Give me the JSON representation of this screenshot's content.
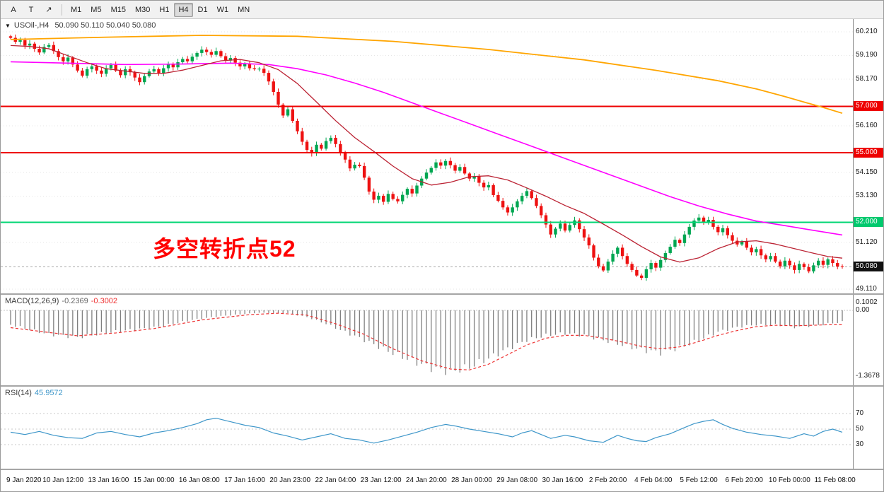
{
  "toolbar": {
    "tool_buttons": [
      {
        "name": "font-tool-button",
        "glyph": "A"
      },
      {
        "name": "text-tool-button",
        "glyph": "T"
      },
      {
        "name": "cursor-tool-button",
        "glyph": "↗"
      }
    ],
    "timeframes": [
      "M1",
      "M5",
      "M15",
      "M30",
      "H1",
      "H4",
      "D1",
      "W1",
      "MN"
    ],
    "active_timeframe": "H4"
  },
  "chart": {
    "collapse_glyph": "▼",
    "title": "USOil-,H4",
    "ohlc_readout": "50.090 50.110 50.040 50.080",
    "annotation": {
      "text": "多空转折点52",
      "color": "#ff0000"
    },
    "colors": {
      "up": "#00a651",
      "down": "#ee1111",
      "ma_fast": "#bb2233",
      "ma_mid": "#ff00ff",
      "ma_slow": "#ffa500",
      "bid": "#aaaaaa"
    },
    "axis_labels": [
      {
        "price": 60.21,
        "label": "60.210"
      },
      {
        "price": 59.19,
        "label": "59.190"
      },
      {
        "price": 58.17,
        "label": "58.170"
      },
      {
        "price": 56.16,
        "label": "56.160"
      },
      {
        "price": 54.15,
        "label": "54.150"
      },
      {
        "price": 53.13,
        "label": "53.130"
      },
      {
        "price": 51.12,
        "label": "51.120"
      },
      {
        "price": 49.11,
        "label": "49.110"
      }
    ],
    "hlines": [
      {
        "id": "resistance-57",
        "price": 57.0,
        "color": "#ee0000"
      },
      {
        "id": "resistance-55",
        "price": 55.0,
        "color": "#ee0000"
      },
      {
        "id": "pivot-52",
        "price": 52.0,
        "color": "#00d673"
      }
    ],
    "badges": [
      {
        "price": 57.0,
        "label": "57.000",
        "color": "#ee0000",
        "text": "#ffffff"
      },
      {
        "price": 55.0,
        "label": "55.000",
        "color": "#ee0000",
        "text": "#ffffff"
      },
      {
        "price": 52.0,
        "label": "52.000",
        "color": "#00c96e",
        "text": "#ffffff"
      },
      {
        "price": 50.08,
        "label": "50.080",
        "color": "#111111",
        "text": "#ffffff"
      }
    ],
    "bid_price": 50.08,
    "candles": {
      "first_open": 60.02,
      "closes": [
        59.95,
        59.78,
        59.85,
        59.62,
        59.7,
        59.48,
        59.32,
        59.56,
        59.64,
        59.38,
        59.12,
        58.94,
        59.1,
        58.8,
        58.54,
        58.32,
        58.6,
        58.72,
        58.54,
        58.4,
        58.64,
        58.78,
        58.54,
        58.34,
        58.6,
        58.47,
        58.24,
        58.04,
        58.3,
        58.5,
        58.6,
        58.44,
        58.64,
        58.8,
        58.68,
        58.9,
        59.04,
        58.94,
        59.14,
        59.3,
        59.44,
        59.34,
        59.22,
        59.38,
        59.16,
        58.97,
        59.08,
        58.88,
        58.72,
        58.82,
        58.64,
        58.6,
        58.62,
        58.44,
        58.07,
        57.62,
        57.07,
        56.6,
        56.87,
        56.37,
        55.92,
        55.47,
        55.12,
        54.97,
        55.34,
        55.17,
        55.5,
        55.64,
        55.37,
        55.02,
        54.7,
        54.32,
        54.48,
        54.42,
        53.92,
        53.32,
        52.97,
        53.14,
        52.88,
        53.22,
        53.0,
        52.9,
        53.18,
        53.44,
        53.24,
        53.58,
        53.88,
        54.14,
        54.34,
        54.58,
        54.44,
        54.64,
        54.46,
        54.22,
        54.38,
        54.1,
        53.88,
        53.97,
        53.7,
        53.5,
        53.6,
        53.17,
        52.92,
        52.64,
        52.42,
        52.64,
        52.9,
        53.14,
        53.34,
        53.04,
        52.7,
        52.3,
        51.9,
        51.47,
        51.72,
        51.94,
        51.64,
        51.88,
        52.08,
        51.7,
        51.34,
        51.0,
        50.47,
        50.1,
        49.92,
        50.3,
        50.64,
        50.9,
        50.54,
        50.2,
        49.94,
        49.7,
        49.6,
        49.97,
        50.24,
        50.04,
        50.37,
        50.67,
        50.94,
        51.24,
        51.1,
        51.47,
        51.8,
        52.07,
        52.2,
        51.97,
        52.1,
        51.8,
        51.57,
        51.74,
        51.44,
        51.2,
        51.04,
        51.17,
        50.9,
        50.7,
        50.84,
        50.57,
        50.4,
        50.54,
        50.3,
        50.1,
        50.34,
        50.14,
        49.94,
        50.2,
        50.06,
        49.88,
        50.14,
        50.34,
        50.16,
        50.4,
        50.24,
        50.09,
        50.08
      ]
    },
    "ma_fast_points": [
      [
        0,
        59.62
      ],
      [
        4,
        59.58
      ],
      [
        8,
        59.48
      ],
      [
        12,
        59.18
      ],
      [
        16,
        58.88
      ],
      [
        20,
        58.62
      ],
      [
        24,
        58.52
      ],
      [
        28,
        58.42
      ],
      [
        32,
        58.42
      ],
      [
        36,
        58.56
      ],
      [
        40,
        58.76
      ],
      [
        44,
        58.96
      ],
      [
        48,
        59.02
      ],
      [
        52,
        58.88
      ],
      [
        56,
        58.58
      ],
      [
        60,
        57.98
      ],
      [
        64,
        57.18
      ],
      [
        68,
        56.38
      ],
      [
        72,
        55.65
      ],
      [
        76,
        55.05
      ],
      [
        80,
        54.42
      ],
      [
        84,
        53.88
      ],
      [
        88,
        53.6
      ],
      [
        92,
        53.72
      ],
      [
        96,
        53.96
      ],
      [
        100,
        54.0
      ],
      [
        104,
        53.82
      ],
      [
        108,
        53.48
      ],
      [
        112,
        53.12
      ],
      [
        116,
        52.72
      ],
      [
        120,
        52.38
      ],
      [
        124,
        51.92
      ],
      [
        128,
        51.45
      ],
      [
        132,
        50.95
      ],
      [
        136,
        50.5
      ],
      [
        140,
        50.28
      ],
      [
        144,
        50.46
      ],
      [
        148,
        50.86
      ],
      [
        152,
        51.15
      ],
      [
        156,
        51.2
      ],
      [
        160,
        51.06
      ],
      [
        164,
        50.86
      ],
      [
        168,
        50.66
      ],
      [
        171,
        50.52
      ],
      [
        174,
        50.45
      ]
    ],
    "ma_mid_points": [
      [
        0,
        58.92
      ],
      [
        12,
        58.86
      ],
      [
        24,
        58.8
      ],
      [
        36,
        58.82
      ],
      [
        46,
        58.86
      ],
      [
        54,
        58.8
      ],
      [
        60,
        58.62
      ],
      [
        66,
        58.35
      ],
      [
        72,
        58.0
      ],
      [
        78,
        57.6
      ],
      [
        84,
        57.15
      ],
      [
        90,
        56.7
      ],
      [
        96,
        56.25
      ],
      [
        102,
        55.8
      ],
      [
        108,
        55.35
      ],
      [
        114,
        54.9
      ],
      [
        120,
        54.45
      ],
      [
        126,
        54.0
      ],
      [
        132,
        53.55
      ],
      [
        138,
        53.1
      ],
      [
        144,
        52.7
      ],
      [
        150,
        52.35
      ],
      [
        156,
        52.05
      ],
      [
        162,
        51.85
      ],
      [
        167,
        51.68
      ],
      [
        174,
        51.45
      ]
    ],
    "ma_slow_points": [
      [
        0,
        59.88
      ],
      [
        20,
        59.98
      ],
      [
        40,
        60.06
      ],
      [
        60,
        60.02
      ],
      [
        80,
        59.8
      ],
      [
        100,
        59.45
      ],
      [
        120,
        59.0
      ],
      [
        135,
        58.55
      ],
      [
        148,
        58.1
      ],
      [
        156,
        57.75
      ],
      [
        162,
        57.42
      ],
      [
        166,
        57.18
      ],
      [
        170,
        56.95
      ],
      [
        174,
        56.7
      ]
    ]
  },
  "macd": {
    "name": "MACD(12,26,9)",
    "value_main": "-0.2369",
    "value_signal": "-0.3002",
    "colors": {
      "histogram": "#808080",
      "signal": "#ee3333"
    },
    "axis_labels": [
      {
        "v": 0.1002,
        "label": "0.1002"
      },
      {
        "v": 0.0,
        "label": "0.00"
      },
      {
        "v": -1.3678,
        "label": "-1.3678"
      }
    ],
    "histogram_envelope": [
      [
        0,
        -0.3
      ],
      [
        8,
        -0.5
      ],
      [
        14,
        -0.56
      ],
      [
        22,
        -0.44
      ],
      [
        30,
        -0.36
      ],
      [
        38,
        -0.2
      ],
      [
        44,
        -0.12
      ],
      [
        52,
        -0.05
      ],
      [
        58,
        -0.06
      ],
      [
        62,
        -0.14
      ],
      [
        66,
        -0.28
      ],
      [
        70,
        -0.45
      ],
      [
        74,
        -0.62
      ],
      [
        79,
        -0.85
      ],
      [
        84,
        -1.05
      ],
      [
        88,
        -1.2
      ],
      [
        92,
        -1.28
      ],
      [
        96,
        -1.18
      ],
      [
        100,
        -1.0
      ],
      [
        104,
        -0.8
      ],
      [
        108,
        -0.62
      ],
      [
        112,
        -0.52
      ],
      [
        116,
        -0.48
      ],
      [
        120,
        -0.52
      ],
      [
        124,
        -0.62
      ],
      [
        128,
        -0.72
      ],
      [
        132,
        -0.82
      ],
      [
        136,
        -0.88
      ],
      [
        140,
        -0.78
      ],
      [
        144,
        -0.62
      ],
      [
        148,
        -0.45
      ],
      [
        152,
        -0.35
      ],
      [
        156,
        -0.3
      ],
      [
        160,
        -0.3
      ],
      [
        164,
        -0.35
      ],
      [
        168,
        -0.32
      ],
      [
        171,
        -0.28
      ],
      [
        174,
        -0.24
      ]
    ],
    "signal_points": [
      [
        0,
        -0.36
      ],
      [
        8,
        -0.46
      ],
      [
        14,
        -0.53
      ],
      [
        22,
        -0.47
      ],
      [
        30,
        -0.38
      ],
      [
        40,
        -0.2
      ],
      [
        50,
        -0.09
      ],
      [
        56,
        -0.06
      ],
      [
        62,
        -0.1
      ],
      [
        68,
        -0.28
      ],
      [
        74,
        -0.5
      ],
      [
        80,
        -0.8
      ],
      [
        86,
        -1.05
      ],
      [
        92,
        -1.22
      ],
      [
        96,
        -1.24
      ],
      [
        100,
        -1.12
      ],
      [
        104,
        -0.92
      ],
      [
        108,
        -0.72
      ],
      [
        112,
        -0.58
      ],
      [
        116,
        -0.52
      ],
      [
        120,
        -0.52
      ],
      [
        124,
        -0.58
      ],
      [
        128,
        -0.66
      ],
      [
        132,
        -0.75
      ],
      [
        136,
        -0.8
      ],
      [
        140,
        -0.76
      ],
      [
        144,
        -0.65
      ],
      [
        148,
        -0.52
      ],
      [
        152,
        -0.42
      ],
      [
        156,
        -0.34
      ],
      [
        160,
        -0.31
      ],
      [
        164,
        -0.32
      ],
      [
        168,
        -0.31
      ],
      [
        171,
        -0.3
      ],
      [
        174,
        -0.3
      ]
    ]
  },
  "rsi": {
    "name": "RSI(14)",
    "value": "45.9572",
    "color": "#3d96c9",
    "level_color": "#c8c8c8",
    "levels": [
      70,
      50,
      30
    ],
    "points": [
      [
        0,
        46
      ],
      [
        3,
        43
      ],
      [
        6,
        47
      ],
      [
        9,
        42
      ],
      [
        12,
        39
      ],
      [
        15,
        38
      ],
      [
        18,
        45
      ],
      [
        21,
        47
      ],
      [
        24,
        43
      ],
      [
        27,
        40
      ],
      [
        30,
        45
      ],
      [
        33,
        48
      ],
      [
        36,
        52
      ],
      [
        39,
        57
      ],
      [
        41,
        62
      ],
      [
        43,
        64
      ],
      [
        45,
        61
      ],
      [
        47,
        58
      ],
      [
        49,
        55
      ],
      [
        52,
        52
      ],
      [
        55,
        45
      ],
      [
        58,
        41
      ],
      [
        61,
        36
      ],
      [
        64,
        40
      ],
      [
        67,
        44
      ],
      [
        70,
        38
      ],
      [
        73,
        36
      ],
      [
        76,
        32
      ],
      [
        79,
        36
      ],
      [
        82,
        41
      ],
      [
        85,
        46
      ],
      [
        88,
        52
      ],
      [
        91,
        56
      ],
      [
        93,
        54
      ],
      [
        96,
        50
      ],
      [
        99,
        47
      ],
      [
        102,
        44
      ],
      [
        105,
        40
      ],
      [
        107,
        45
      ],
      [
        109,
        48
      ],
      [
        111,
        43
      ],
      [
        113,
        38
      ],
      [
        116,
        42
      ],
      [
        118,
        40
      ],
      [
        121,
        35
      ],
      [
        124,
        33
      ],
      [
        127,
        42
      ],
      [
        129,
        38
      ],
      [
        131,
        35
      ],
      [
        133,
        34
      ],
      [
        135,
        39
      ],
      [
        138,
        44
      ],
      [
        141,
        52
      ],
      [
        143,
        57
      ],
      [
        145,
        60
      ],
      [
        147,
        62
      ],
      [
        149,
        56
      ],
      [
        151,
        51
      ],
      [
        154,
        46
      ],
      [
        157,
        43
      ],
      [
        160,
        41
      ],
      [
        163,
        38
      ],
      [
        166,
        44
      ],
      [
        168,
        41
      ],
      [
        170,
        47
      ],
      [
        172,
        50
      ],
      [
        174,
        46
      ]
    ]
  },
  "time_axis": {
    "labels": [
      "9 Jan 2020",
      "10 Jan 12:00",
      "13 Jan 16:00",
      "15 Jan 00:00",
      "16 Jan 08:00",
      "17 Jan 16:00",
      "20 Jan 23:00",
      "22 Jan 04:00",
      "23 Jan 12:00",
      "24 Jan 20:00",
      "28 Jan 00:00",
      "29 Jan 08:00",
      "30 Jan 16:00",
      "2 Feb 20:00",
      "4 Feb 04:00",
      "5 Feb 12:00",
      "6 Feb 20:00",
      "10 Feb 00:00",
      "11 Feb 08:00"
    ]
  }
}
